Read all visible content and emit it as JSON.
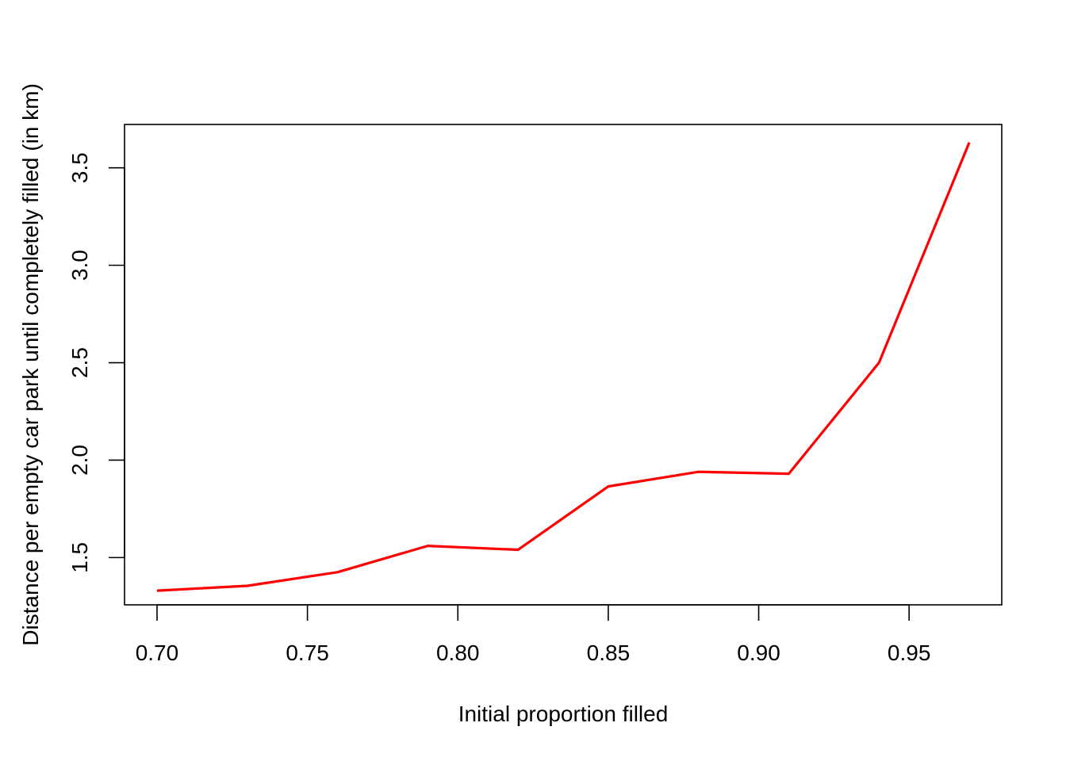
{
  "chart_data": {
    "type": "line",
    "title": "",
    "xlabel": "Initial proportion filled",
    "ylabel": "Distance per empty car park until completely filled (in km)",
    "xlim": [
      0.6892,
      0.9808
    ],
    "ylim": [
      1.2574,
      3.7226
    ],
    "x_ticks": [
      0.7,
      0.75,
      0.8,
      0.85,
      0.9,
      0.95
    ],
    "x_tick_labels": [
      "0.70",
      "0.75",
      "0.80",
      "0.85",
      "0.90",
      "0.95"
    ],
    "y_ticks": [
      1.5,
      2.0,
      2.5,
      3.0,
      3.5
    ],
    "y_tick_labels": [
      "1.5",
      "2.0",
      "2.5",
      "3.0",
      "3.5"
    ],
    "grid": false,
    "series": [
      {
        "color": "#ff0000",
        "x": [
          0.7,
          0.73,
          0.76,
          0.79,
          0.82,
          0.85,
          0.88,
          0.91,
          0.94,
          0.97
        ],
        "y": [
          1.33,
          1.355,
          1.425,
          1.56,
          1.54,
          1.865,
          1.94,
          1.93,
          2.5,
          3.63
        ]
      }
    ]
  }
}
